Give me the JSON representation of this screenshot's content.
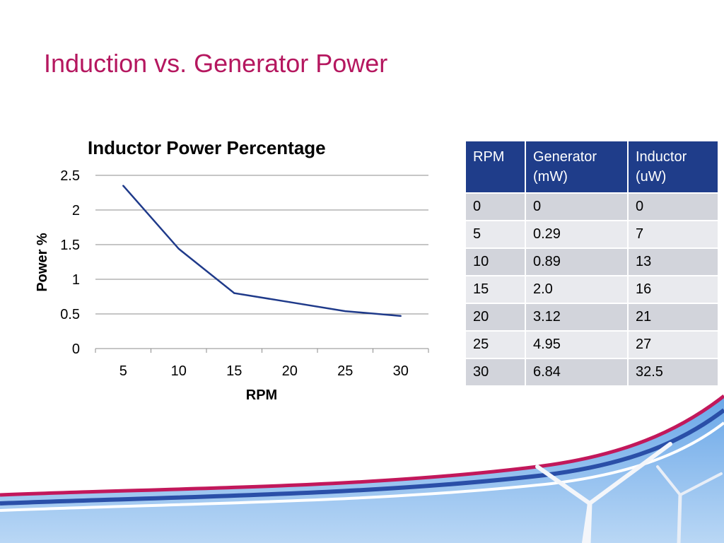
{
  "slide": {
    "title": "Induction vs. Generator Power"
  },
  "chart_data": {
    "type": "line",
    "title": "Inductor Power Percentage",
    "xlabel": "RPM",
    "ylabel": "Power %",
    "categories": [
      "5",
      "10",
      "15",
      "20",
      "25",
      "30"
    ],
    "series": [
      {
        "values": [
          2.35,
          1.44,
          0.8,
          0.67,
          0.54,
          0.47
        ]
      }
    ],
    "ylim": [
      0,
      2.5
    ],
    "yticks": [
      "0",
      "0.5",
      "1",
      "1.5",
      "2",
      "2.5"
    ],
    "grid": true,
    "legend": "none",
    "colors": {
      "line": "#1f3a8a",
      "grid": "#8c8c8c"
    }
  },
  "table": {
    "headers": [
      "RPM",
      "Generator (mW)",
      "Inductor (uW)"
    ],
    "rows": [
      [
        "0",
        "0",
        "0"
      ],
      [
        "5",
        "0.29",
        "7"
      ],
      [
        "10",
        "0.89",
        "13"
      ],
      [
        "15",
        "2.0",
        "16"
      ],
      [
        "20",
        "3.12",
        "21"
      ],
      [
        "25",
        "4.95",
        "27"
      ],
      [
        "30",
        "6.84",
        "32.5"
      ]
    ],
    "colors": {
      "header": "#1f3d8a",
      "row_odd": "#d2d4db",
      "row_even": "#e9eaee"
    }
  },
  "decor": {
    "icons": [
      "wind-turbine-icon"
    ]
  }
}
